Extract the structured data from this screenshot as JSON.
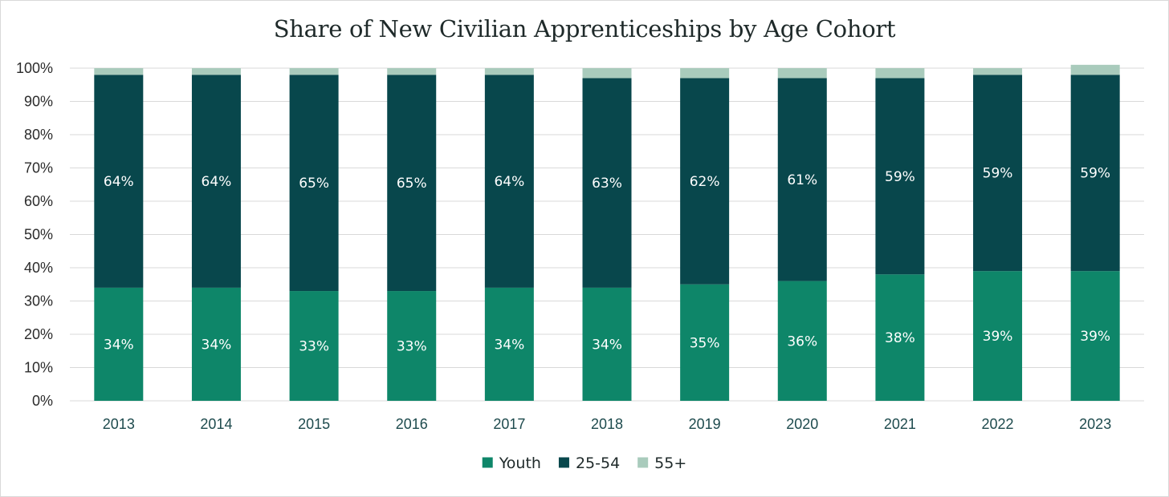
{
  "chart_data": {
    "type": "bar",
    "stacked": true,
    "title": "Share of New Civilian Apprenticeships by Age Cohort",
    "categories": [
      "2013",
      "2014",
      "2015",
      "2016",
      "2017",
      "2018",
      "2019",
      "2020",
      "2021",
      "2022",
      "2023"
    ],
    "series": [
      {
        "name": "Youth",
        "color": "#0e8669",
        "values": [
          34,
          34,
          33,
          33,
          34,
          34,
          35,
          36,
          38,
          39,
          39
        ],
        "labels": [
          "34%",
          "34%",
          "33%",
          "33%",
          "34%",
          "34%",
          "35%",
          "36%",
          "38%",
          "39%",
          "39%"
        ]
      },
      {
        "name": "25-54",
        "color": "#08474c",
        "values": [
          64,
          64,
          65,
          65,
          64,
          63,
          62,
          61,
          59,
          59,
          59
        ],
        "labels": [
          "64%",
          "64%",
          "65%",
          "65%",
          "64%",
          "63%",
          "62%",
          "61%",
          "59%",
          "59%",
          "59%"
        ]
      },
      {
        "name": "55+",
        "color": "#a9cbbc",
        "values": [
          2,
          2,
          2,
          2,
          2,
          3,
          3,
          3,
          3,
          2,
          3
        ]
      }
    ],
    "ylim": [
      0,
      100
    ],
    "yticks": [
      "0%",
      "10%",
      "20%",
      "30%",
      "40%",
      "50%",
      "60%",
      "70%",
      "80%",
      "90%",
      "100%"
    ],
    "grid": true,
    "legend_position": "bottom"
  }
}
